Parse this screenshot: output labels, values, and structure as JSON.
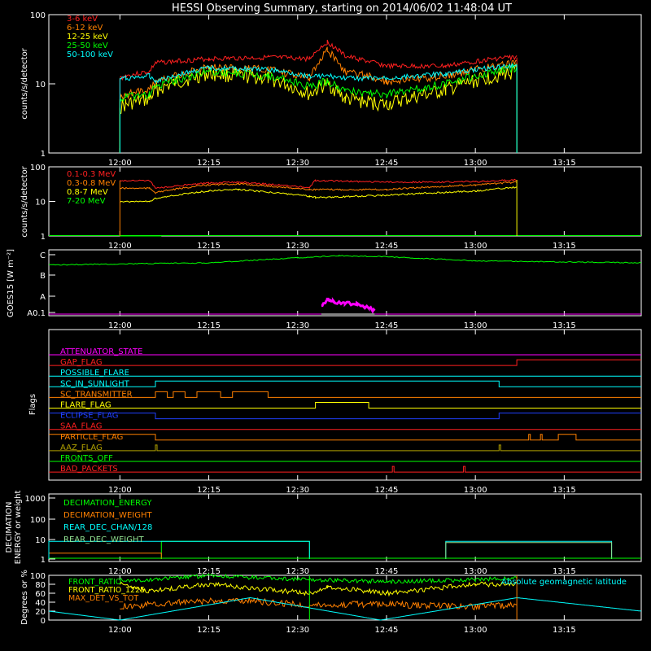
{
  "title": "HESSI Observing Summary, starting on 2014/06/02 11:48:04 UT",
  "time_axis": {
    "start": "11:48",
    "end": "13:28",
    "ticks": [
      "12:00",
      "12:15",
      "12:30",
      "12:45",
      "13:00",
      "13:15"
    ]
  },
  "colors": {
    "red": "#ff2020",
    "orange": "#ff8000",
    "yellow": "#ffff00",
    "green": "#00ff00",
    "cyan": "#00ffff",
    "magenta": "#ff00ff",
    "blue": "#2040ff",
    "olive": "#b0a000",
    "white": "#ffffff",
    "palegreen": "#90e090"
  },
  "chart_data": [
    {
      "type": "line",
      "ylabel": "counts/s/detector",
      "yscale": "log",
      "ylim": [
        1,
        100
      ],
      "ytick_labels": [
        "1",
        "10",
        "100"
      ],
      "series": [
        {
          "name": "3-6 keV",
          "color": "red",
          "x": [
            "12:00",
            "12:01",
            "12:05",
            "12:06",
            "12:15",
            "12:25",
            "12:32",
            "12:35",
            "12:38",
            "12:45",
            "12:55",
            "13:05",
            "13:07"
          ],
          "values": [
            12,
            13,
            15,
            20,
            23,
            24,
            23,
            40,
            25,
            18,
            18,
            24,
            24
          ]
        },
        {
          "name": "6-12 keV",
          "color": "orange",
          "x": [
            "12:00",
            "12:01",
            "12:05",
            "12:06",
            "12:15",
            "12:25",
            "12:32",
            "12:35",
            "12:38",
            "12:45",
            "12:55",
            "13:05",
            "13:07"
          ],
          "values": [
            6,
            7,
            8,
            11,
            17,
            16,
            12,
            30,
            15,
            11,
            13,
            19,
            20
          ]
        },
        {
          "name": "12-25 keV",
          "color": "yellow",
          "x": [
            "12:00",
            "12:01",
            "12:05",
            "12:06",
            "12:15",
            "12:25",
            "12:32",
            "12:35",
            "12:38",
            "12:45",
            "12:55",
            "13:05",
            "13:07"
          ],
          "values": [
            4.5,
            5,
            6,
            8,
            14,
            12,
            7,
            10,
            6,
            5,
            8,
            14,
            15
          ]
        },
        {
          "name": "25-50 keV",
          "color": "green",
          "x": [
            "12:00",
            "12:01",
            "12:05",
            "12:06",
            "12:15",
            "12:25",
            "12:32",
            "12:35",
            "12:38",
            "12:45",
            "12:55",
            "13:05",
            "13:07"
          ],
          "values": [
            6,
            6.5,
            7,
            9,
            15,
            13,
            9,
            11,
            8,
            7,
            10,
            16,
            17
          ]
        },
        {
          "name": "50-100 keV",
          "color": "cyan",
          "x": [
            "12:00",
            "12:01",
            "12:05",
            "12:06",
            "12:15",
            "12:25",
            "12:32",
            "12:35",
            "12:38",
            "12:45",
            "12:55",
            "13:05",
            "13:07"
          ],
          "values": [
            12,
            12,
            13,
            11,
            17,
            16,
            13,
            13,
            12,
            12,
            14,
            18,
            19
          ]
        }
      ]
    },
    {
      "type": "line",
      "ylabel": "counts/s/detector",
      "yscale": "log",
      "ylim": [
        1,
        100
      ],
      "ytick_labels": [
        "1",
        "10",
        "100"
      ],
      "series": [
        {
          "name": "0.1-0.3 MeV",
          "color": "red",
          "x": [
            "12:00",
            "12:05",
            "12:06",
            "12:15",
            "12:20",
            "12:32",
            "12:33",
            "12:45",
            "13:00",
            "13:07"
          ],
          "values": [
            40,
            40,
            24,
            34,
            36,
            25,
            40,
            36,
            37,
            42
          ]
        },
        {
          "name": "0.3-0.8 MeV",
          "color": "orange",
          "x": [
            "12:00",
            "12:05",
            "12:06",
            "12:15",
            "12:20",
            "12:32",
            "12:33",
            "12:45",
            "13:00",
            "13:07"
          ],
          "values": [
            24,
            24,
            18,
            30,
            32,
            22,
            22,
            22,
            30,
            36
          ]
        },
        {
          "name": "0.8-7 MeV",
          "color": "yellow",
          "x": [
            "12:00",
            "12:05",
            "12:06",
            "12:15",
            "12:20",
            "12:32",
            "12:33",
            "12:45",
            "13:00",
            "13:07"
          ],
          "values": [
            10,
            10,
            12,
            20,
            22,
            14,
            13,
            15,
            20,
            26
          ]
        },
        {
          "name": "7-20 MeV",
          "color": "green",
          "x": [
            "12:00",
            "12:07"
          ],
          "values": [
            1,
            1
          ]
        }
      ]
    },
    {
      "type": "line",
      "ylabel": "GOES15 [W m⁻²]",
      "ytick_labels": [
        "A0.1",
        "A",
        "B",
        "C"
      ],
      "series": [
        {
          "name": "GOES",
          "color": "green",
          "x": [
            "11:48",
            "12:15",
            "12:30",
            "12:37",
            "12:45",
            "13:00",
            "13:28"
          ],
          "level": [
            2.5,
            2.6,
            2.85,
            2.95,
            2.9,
            2.7,
            2.6
          ]
        },
        {
          "name": "SAA",
          "color": "magenta",
          "x": [
            "12:34",
            "12:35",
            "12:36",
            "12:38",
            "12:40",
            "12:42",
            "12:43"
          ],
          "level": [
            0.3,
            0.6,
            0.5,
            0.45,
            0.4,
            0.2,
            0.1
          ]
        }
      ]
    },
    {
      "type": "line",
      "ylabel": "Flags",
      "flags": [
        {
          "name": "ATTENUATOR_STATE",
          "color": "magenta",
          "segments": []
        },
        {
          "name": "GAP_FLAG",
          "color": "red",
          "segments": [
            [
              "13:07",
              "13:28"
            ]
          ]
        },
        {
          "name": "POSSIBLE_FLARE",
          "color": "cyan",
          "segments": []
        },
        {
          "name": "SC_IN_SUNLIGHT",
          "color": "cyan",
          "segments": [
            [
              "12:06",
              "13:04"
            ]
          ]
        },
        {
          "name": "SC_TRANSMITTER",
          "color": "orange",
          "segments": [
            [
              "12:06",
              "12:08"
            ],
            [
              "12:09",
              "12:11"
            ],
            [
              "12:13",
              "12:17"
            ],
            [
              "12:19",
              "12:25"
            ]
          ]
        },
        {
          "name": "FLARE_FLAG",
          "color": "yellow",
          "segments": [
            [
              "12:33",
              "12:42"
            ]
          ]
        },
        {
          "name": "ECLIPSE_FLAG",
          "color": "blue",
          "segments": [
            [
              "11:48",
              "12:06"
            ],
            [
              "13:04",
              "13:28"
            ]
          ]
        },
        {
          "name": "SAA_FLAG",
          "color": "red",
          "segments": []
        },
        {
          "name": "PARTICLE_FLAG",
          "color": "orange",
          "segments": [
            [
              "11:48",
              "12:06"
            ],
            [
              "13:09",
              "13:09"
            ],
            [
              "13:11",
              "13:11"
            ],
            [
              "13:14",
              "13:17"
            ]
          ]
        },
        {
          "name": "AAZ_FLAG",
          "color": "olive",
          "segments": [
            [
              "12:06",
              "12:06"
            ],
            [
              "13:04",
              "13:04"
            ]
          ]
        },
        {
          "name": "FRONTS_OFF",
          "color": "green",
          "segments": []
        },
        {
          "name": "BAD_PACKETS",
          "color": "red",
          "segments": [
            [
              "12:46",
              "12:46"
            ],
            [
              "12:58",
              "12:58"
            ]
          ]
        }
      ]
    },
    {
      "type": "line",
      "ylabel": "DECIMATION ENERGY or weight",
      "yscale": "log",
      "ytick_labels": [
        "1",
        "10",
        "100",
        "1000"
      ],
      "series": [
        {
          "name": "DECIMATION_ENERGY",
          "color": "green",
          "x": [
            "12:07",
            "12:32"
          ],
          "values": [
            8,
            8
          ]
        },
        {
          "name": "DECIMATION_WEIGHT",
          "color": "orange",
          "x": [
            "11:48",
            "12:07"
          ],
          "values": [
            2,
            2
          ]
        },
        {
          "name": "REAR_DEC_CHAN/128",
          "color": "cyan",
          "x": [
            "11:48",
            "12:32",
            "12:55",
            "13:23"
          ],
          "values": [
            8,
            8,
            8,
            8
          ]
        },
        {
          "name": "REAR_DEC_WEIGHT",
          "color": "palegreen",
          "x": [
            "12:55",
            "13:23"
          ],
          "values": [
            7,
            7
          ]
        }
      ]
    },
    {
      "type": "line",
      "ylabel": "Degrees or %",
      "ylim": [
        0,
        100
      ],
      "ytick_labels": [
        "0",
        "20",
        "40",
        "60",
        "80",
        "100"
      ],
      "series": [
        {
          "name": "FRONT_RATIO",
          "color": "green",
          "x": [
            "12:00",
            "12:05",
            "12:15",
            "12:32",
            "12:45",
            "13:00",
            "13:07"
          ],
          "values": [
            90,
            90,
            99,
            90,
            86,
            90,
            94
          ]
        },
        {
          "name": "FRONT_RATIO_1225",
          "color": "yellow",
          "x": [
            "12:00",
            "12:05",
            "12:15",
            "12:32",
            "12:35",
            "12:45",
            "13:00",
            "13:07"
          ],
          "values": [
            80,
            65,
            80,
            60,
            75,
            60,
            80,
            80
          ]
        },
        {
          "name": "MAX_DET_VS_TOT",
          "color": "orange",
          "x": [
            "12:00",
            "12:10",
            "12:20",
            "12:30",
            "12:45",
            "13:00",
            "13:07"
          ],
          "values": [
            30,
            40,
            45,
            35,
            35,
            30,
            35
          ]
        },
        {
          "name": "Absolute geomagnetic latitude",
          "color": "cyan",
          "x": [
            "11:48",
            "12:00",
            "12:22",
            "12:44",
            "13:07",
            "13:28"
          ],
          "values": [
            20,
            0,
            50,
            0,
            50,
            20
          ]
        }
      ]
    }
  ]
}
